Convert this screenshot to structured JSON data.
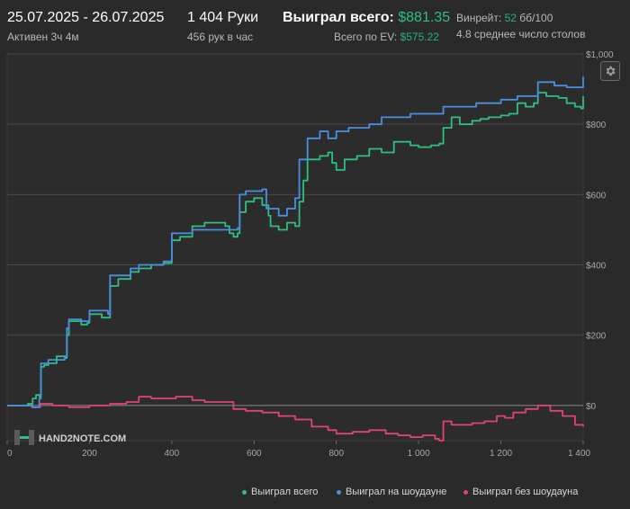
{
  "header": {
    "date_range": "25.07.2025 - 26.07.2025",
    "active": "Активен 3ч 4м",
    "hands": "1 404 Руки",
    "hands_per_hour": "456 рук в час",
    "won_total_label": "Выиграл всего:",
    "won_total_value": "$881.35",
    "ev_label": "Всего по EV:",
    "ev_value": "$575.22",
    "winrate_label": "Винрейт:",
    "winrate_value": "52",
    "winrate_unit": "бб/100",
    "avg_tables": "4.8 среднее число столов"
  },
  "logo_text": "HAND2NOTE.COM",
  "colors": {
    "background": "#2a2a2a",
    "plot_bg": "#2c2c2c",
    "total": "#2fbf80",
    "showdown": "#4a90e2",
    "non_showdown": "#e0456f",
    "accent_green": "#2fbf80"
  },
  "chart_data": {
    "type": "line",
    "xlim": [
      0,
      1400
    ],
    "ylim": [
      -100,
      1000
    ],
    "x_ticks": [
      0,
      200,
      400,
      600,
      800,
      1000,
      1200,
      1400
    ],
    "x_tick_labels": [
      "0",
      "200",
      "400",
      "600",
      "800",
      "1 000",
      "1 200",
      "1 400"
    ],
    "y_ticks": [
      0,
      200,
      400,
      600,
      800,
      1000
    ],
    "y_tick_labels": [
      "$0",
      "$200",
      "$400",
      "$600",
      "$800",
      "$1,000"
    ],
    "grid": true,
    "legend_position": "bottom-right",
    "series": [
      {
        "name": "Выиграл всего",
        "color": "#2fbf80",
        "points": [
          [
            0,
            0
          ],
          [
            40,
            0
          ],
          [
            50,
            5
          ],
          [
            62,
            20
          ],
          [
            70,
            30
          ],
          [
            78,
            25
          ],
          [
            82,
            110
          ],
          [
            90,
            115
          ],
          [
            100,
            120
          ],
          [
            120,
            140
          ],
          [
            140,
            135
          ],
          [
            145,
            200
          ],
          [
            150,
            240
          ],
          [
            160,
            240
          ],
          [
            180,
            230
          ],
          [
            195,
            235
          ],
          [
            200,
            260
          ],
          [
            230,
            250
          ],
          [
            245,
            250
          ],
          [
            250,
            340
          ],
          [
            270,
            360
          ],
          [
            300,
            380
          ],
          [
            320,
            390
          ],
          [
            350,
            400
          ],
          [
            380,
            405
          ],
          [
            400,
            470
          ],
          [
            420,
            480
          ],
          [
            450,
            510
          ],
          [
            480,
            520
          ],
          [
            500,
            520
          ],
          [
            520,
            520
          ],
          [
            530,
            510
          ],
          [
            540,
            490
          ],
          [
            550,
            480
          ],
          [
            560,
            490
          ],
          [
            565,
            550
          ],
          [
            580,
            580
          ],
          [
            600,
            590
          ],
          [
            620,
            570
          ],
          [
            635,
            540
          ],
          [
            640,
            510
          ],
          [
            660,
            500
          ],
          [
            680,
            520
          ],
          [
            700,
            510
          ],
          [
            710,
            580
          ],
          [
            720,
            640
          ],
          [
            730,
            700
          ],
          [
            760,
            710
          ],
          [
            780,
            720
          ],
          [
            790,
            690
          ],
          [
            800,
            670
          ],
          [
            820,
            700
          ],
          [
            850,
            710
          ],
          [
            880,
            730
          ],
          [
            910,
            720
          ],
          [
            940,
            750
          ],
          [
            980,
            740
          ],
          [
            1000,
            735
          ],
          [
            1030,
            740
          ],
          [
            1050,
            745
          ],
          [
            1060,
            790
          ],
          [
            1080,
            820
          ],
          [
            1100,
            800
          ],
          [
            1130,
            810
          ],
          [
            1150,
            815
          ],
          [
            1170,
            820
          ],
          [
            1200,
            825
          ],
          [
            1220,
            830
          ],
          [
            1240,
            860
          ],
          [
            1260,
            850
          ],
          [
            1280,
            860
          ],
          [
            1290,
            890
          ],
          [
            1310,
            880
          ],
          [
            1340,
            875
          ],
          [
            1360,
            860
          ],
          [
            1380,
            850
          ],
          [
            1395,
            845
          ],
          [
            1400,
            880
          ]
        ]
      },
      {
        "name": "Выиграл на шоудауне",
        "color": "#4a90e2",
        "points": [
          [
            0,
            0
          ],
          [
            50,
            0
          ],
          [
            62,
            -5
          ],
          [
            70,
            -5
          ],
          [
            78,
            20
          ],
          [
            82,
            120
          ],
          [
            100,
            130
          ],
          [
            140,
            140
          ],
          [
            145,
            220
          ],
          [
            150,
            245
          ],
          [
            180,
            240
          ],
          [
            195,
            240
          ],
          [
            200,
            270
          ],
          [
            245,
            260
          ],
          [
            250,
            370
          ],
          [
            300,
            390
          ],
          [
            320,
            400
          ],
          [
            380,
            410
          ],
          [
            400,
            490
          ],
          [
            450,
            500
          ],
          [
            500,
            500
          ],
          [
            520,
            500
          ],
          [
            530,
            500
          ],
          [
            560,
            505
          ],
          [
            565,
            600
          ],
          [
            580,
            610
          ],
          [
            620,
            615
          ],
          [
            630,
            560
          ],
          [
            640,
            560
          ],
          [
            660,
            540
          ],
          [
            680,
            560
          ],
          [
            700,
            590
          ],
          [
            710,
            700
          ],
          [
            730,
            760
          ],
          [
            760,
            780
          ],
          [
            780,
            760
          ],
          [
            800,
            780
          ],
          [
            830,
            790
          ],
          [
            880,
            800
          ],
          [
            910,
            820
          ],
          [
            940,
            820
          ],
          [
            980,
            830
          ],
          [
            1020,
            830
          ],
          [
            1050,
            830
          ],
          [
            1060,
            850
          ],
          [
            1100,
            850
          ],
          [
            1140,
            860
          ],
          [
            1170,
            860
          ],
          [
            1200,
            870
          ],
          [
            1240,
            880
          ],
          [
            1290,
            920
          ],
          [
            1330,
            910
          ],
          [
            1360,
            905
          ],
          [
            1395,
            905
          ],
          [
            1400,
            935
          ]
        ]
      },
      {
        "name": "Выиграл без шоудауна",
        "color": "#e0456f",
        "points": [
          [
            0,
            0
          ],
          [
            40,
            0
          ],
          [
            60,
            -5
          ],
          [
            80,
            5
          ],
          [
            110,
            0
          ],
          [
            150,
            -5
          ],
          [
            200,
            0
          ],
          [
            250,
            5
          ],
          [
            290,
            10
          ],
          [
            320,
            25
          ],
          [
            350,
            20
          ],
          [
            380,
            20
          ],
          [
            410,
            25
          ],
          [
            450,
            15
          ],
          [
            480,
            10
          ],
          [
            520,
            10
          ],
          [
            550,
            -10
          ],
          [
            580,
            -15
          ],
          [
            620,
            -20
          ],
          [
            660,
            -30
          ],
          [
            700,
            -40
          ],
          [
            740,
            -60
          ],
          [
            780,
            -70
          ],
          [
            800,
            -80
          ],
          [
            840,
            -75
          ],
          [
            880,
            -70
          ],
          [
            920,
            -80
          ],
          [
            950,
            -85
          ],
          [
            980,
            -90
          ],
          [
            1010,
            -85
          ],
          [
            1040,
            -95
          ],
          [
            1050,
            -100
          ],
          [
            1060,
            -45
          ],
          [
            1080,
            -55
          ],
          [
            1100,
            -55
          ],
          [
            1130,
            -50
          ],
          [
            1160,
            -45
          ],
          [
            1190,
            -30
          ],
          [
            1210,
            -35
          ],
          [
            1230,
            -20
          ],
          [
            1260,
            -10
          ],
          [
            1290,
            0
          ],
          [
            1320,
            -15
          ],
          [
            1350,
            -30
          ],
          [
            1380,
            -55
          ],
          [
            1400,
            -60
          ]
        ]
      }
    ]
  }
}
